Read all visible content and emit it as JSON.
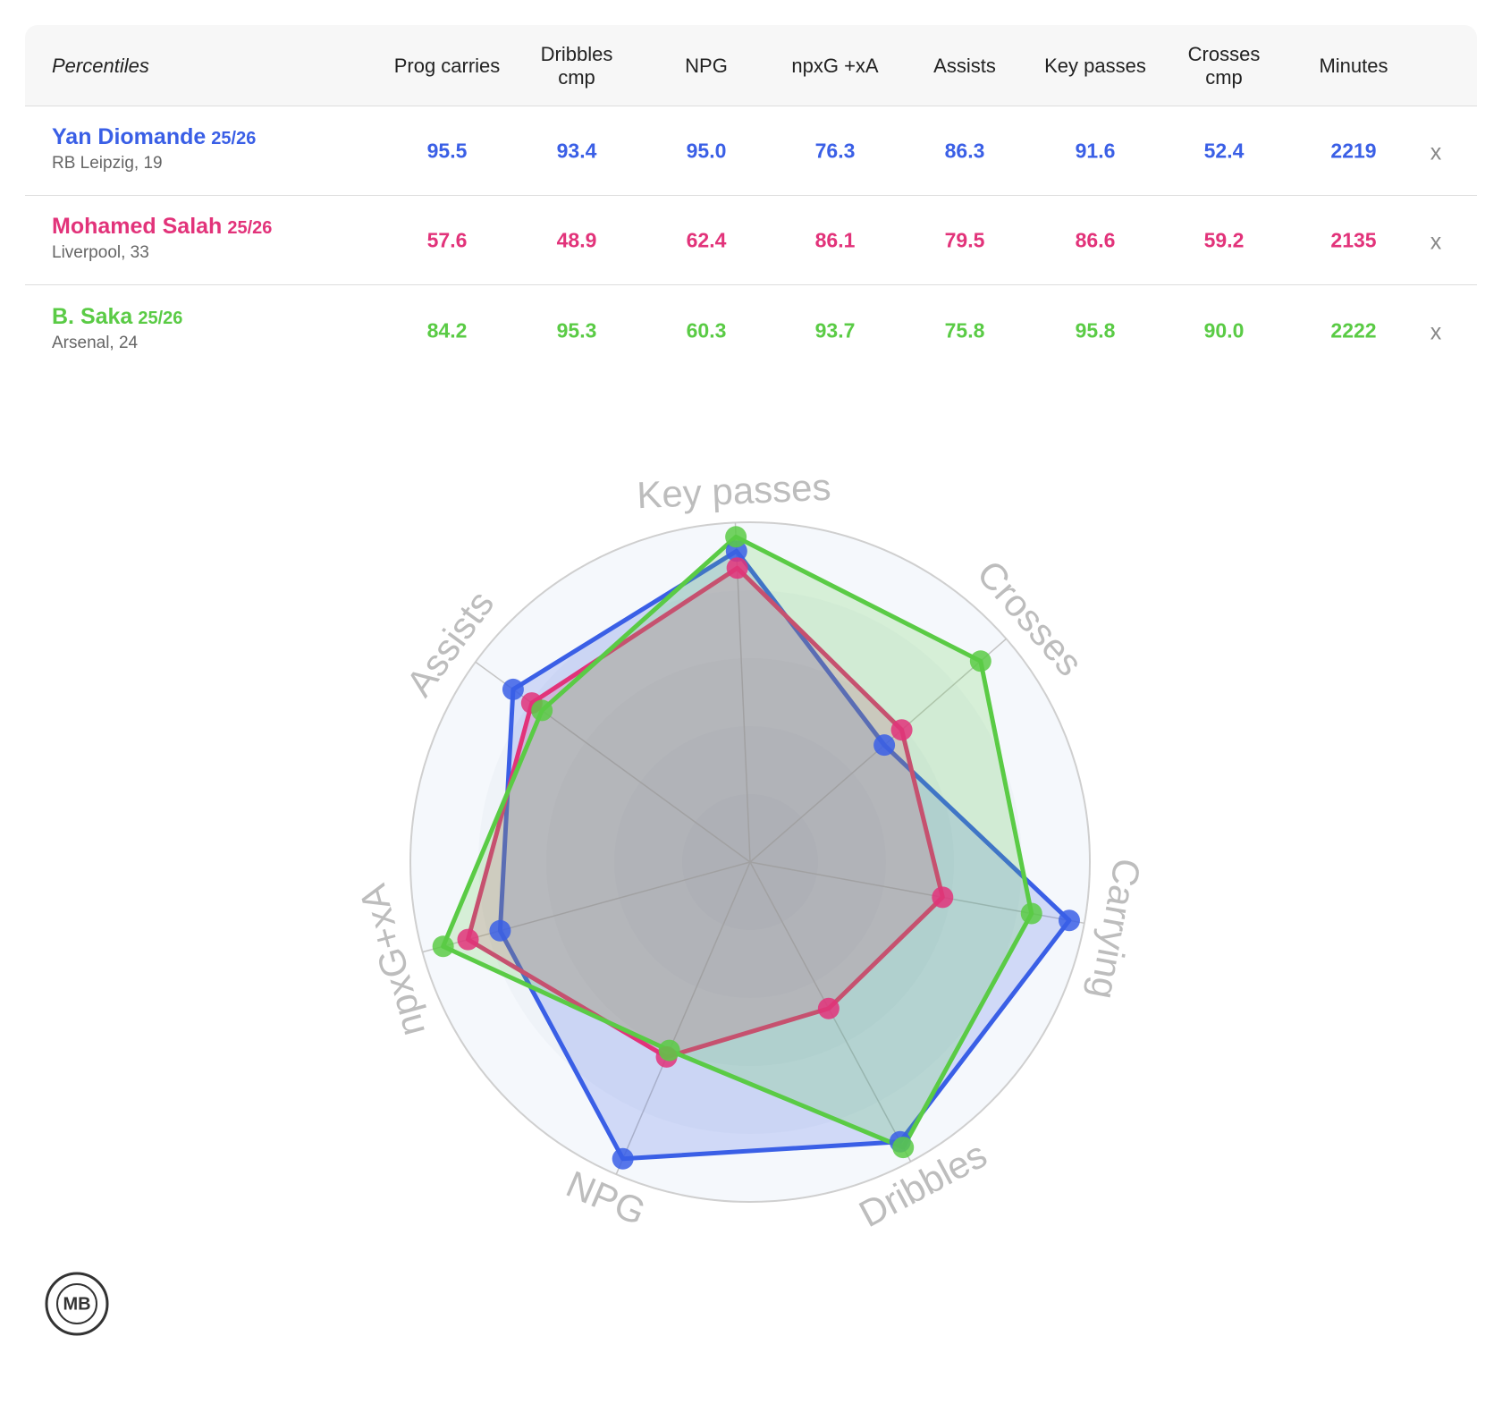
{
  "table": {
    "title": "Percentiles",
    "columns": [
      "Prog carries",
      "Dribbles cmp",
      "NPG",
      "npxG +xA",
      "Assists",
      "Key passes",
      "Crosses cmp",
      "Minutes"
    ],
    "rows": [
      {
        "name": "Yan Diomande",
        "season": "25/26",
        "club": "RB Leipzig, 19",
        "color": "#3a5fe6",
        "values": [
          "95.5",
          "93.4",
          "95.0",
          "76.3",
          "86.3",
          "91.6",
          "52.4",
          "2219"
        ],
        "remove": "x"
      },
      {
        "name": "Mohamed Salah",
        "season": "25/26",
        "club": "Liverpool, 33",
        "color": "#e2337a",
        "values": [
          "57.6",
          "48.9",
          "62.4",
          "86.1",
          "79.5",
          "86.6",
          "59.2",
          "2135"
        ],
        "remove": "x"
      },
      {
        "name": "B. Saka",
        "season": "25/26",
        "club": "Arsenal, 24",
        "color": "#5acb45",
        "values": [
          "84.2",
          "95.3",
          "60.3",
          "93.7",
          "75.8",
          "95.8",
          "90.0",
          "2222"
        ],
        "remove": "x"
      }
    ]
  },
  "chart_data": {
    "type": "radar",
    "categories": [
      "Carrying",
      "Dribbles",
      "NPG",
      "npxG+xA",
      "Assists",
      "Key passes",
      "Crosses"
    ],
    "rlim": [
      0,
      100
    ],
    "rticks": [
      20,
      40,
      60,
      80,
      100
    ],
    "grid": true
  },
  "logo": "MB"
}
